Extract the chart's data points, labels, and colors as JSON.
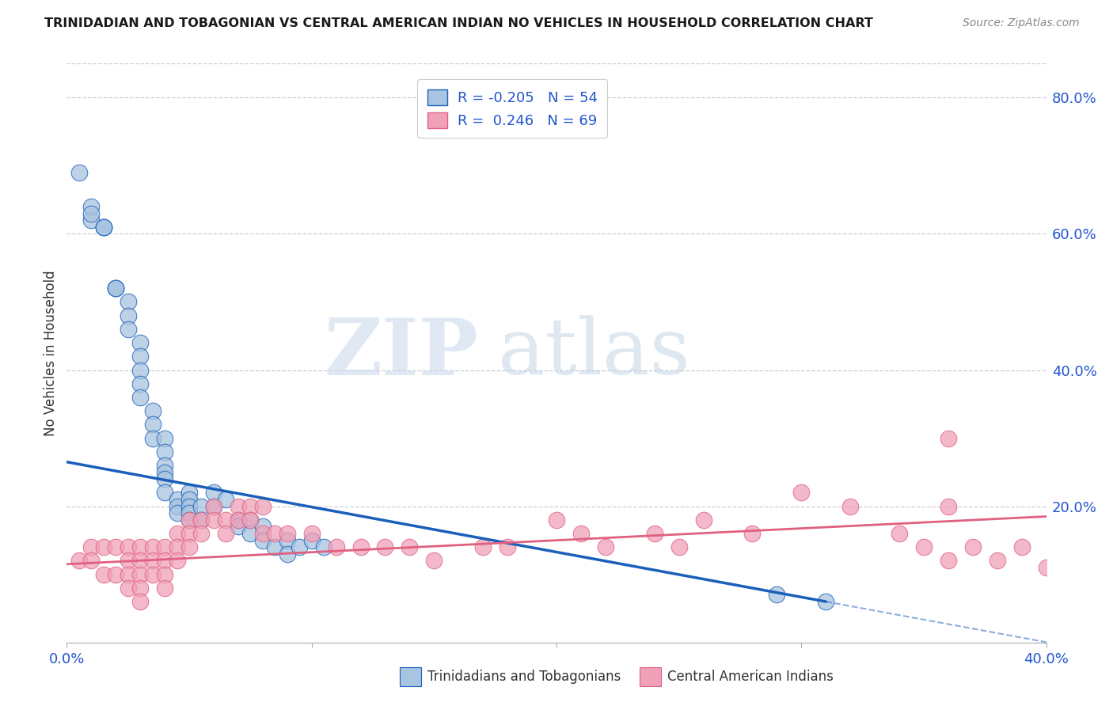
{
  "title": "TRINIDADIAN AND TOBAGONIAN VS CENTRAL AMERICAN INDIAN NO VEHICLES IN HOUSEHOLD CORRELATION CHART",
  "source": "Source: ZipAtlas.com",
  "ylabel": "No Vehicles in Household",
  "legend_label_blue": "Trinidadians and Tobagonians",
  "legend_label_pink": "Central American Indians",
  "legend_r_blue": "R = -0.205",
  "legend_n_blue": "N = 54",
  "legend_r_pink": "R =  0.246",
  "legend_n_pink": "N = 69",
  "blue_color": "#a8c4e0",
  "pink_color": "#f0a0b8",
  "blue_line_color": "#1a5fba",
  "pink_line_color": "#e06080",
  "watermark_zip": "ZIP",
  "watermark_atlas": "atlas",
  "blue_scatter_x": [
    0.005,
    0.01,
    0.01,
    0.015,
    0.01,
    0.015,
    0.015,
    0.02,
    0.02,
    0.02,
    0.025,
    0.025,
    0.025,
    0.03,
    0.03,
    0.03,
    0.03,
    0.03,
    0.035,
    0.035,
    0.035,
    0.04,
    0.04,
    0.04,
    0.04,
    0.04,
    0.04,
    0.045,
    0.045,
    0.045,
    0.05,
    0.05,
    0.05,
    0.05,
    0.05,
    0.055,
    0.055,
    0.06,
    0.06,
    0.065,
    0.07,
    0.07,
    0.075,
    0.075,
    0.08,
    0.08,
    0.085,
    0.09,
    0.09,
    0.095,
    0.1,
    0.105,
    0.29,
    0.31
  ],
  "blue_scatter_y": [
    0.69,
    0.62,
    0.64,
    0.61,
    0.63,
    0.61,
    0.61,
    0.52,
    0.52,
    0.52,
    0.5,
    0.48,
    0.46,
    0.44,
    0.42,
    0.4,
    0.38,
    0.36,
    0.34,
    0.32,
    0.3,
    0.3,
    0.28,
    0.26,
    0.25,
    0.24,
    0.22,
    0.21,
    0.2,
    0.19,
    0.22,
    0.21,
    0.2,
    0.19,
    0.18,
    0.2,
    0.18,
    0.22,
    0.2,
    0.21,
    0.18,
    0.17,
    0.18,
    0.16,
    0.17,
    0.15,
    0.14,
    0.15,
    0.13,
    0.14,
    0.15,
    0.14,
    0.07,
    0.06
  ],
  "pink_scatter_x": [
    0.005,
    0.01,
    0.01,
    0.015,
    0.015,
    0.02,
    0.02,
    0.025,
    0.025,
    0.025,
    0.025,
    0.03,
    0.03,
    0.03,
    0.03,
    0.03,
    0.035,
    0.035,
    0.035,
    0.04,
    0.04,
    0.04,
    0.04,
    0.045,
    0.045,
    0.045,
    0.05,
    0.05,
    0.05,
    0.055,
    0.055,
    0.06,
    0.06,
    0.065,
    0.065,
    0.07,
    0.07,
    0.075,
    0.075,
    0.08,
    0.08,
    0.085,
    0.09,
    0.1,
    0.11,
    0.12,
    0.13,
    0.14,
    0.15,
    0.17,
    0.18,
    0.2,
    0.21,
    0.22,
    0.24,
    0.25,
    0.26,
    0.28,
    0.3,
    0.32,
    0.34,
    0.35,
    0.36,
    0.36,
    0.36,
    0.37,
    0.38,
    0.39,
    0.4
  ],
  "pink_scatter_y": [
    0.12,
    0.14,
    0.12,
    0.14,
    0.1,
    0.14,
    0.1,
    0.14,
    0.12,
    0.1,
    0.08,
    0.14,
    0.12,
    0.1,
    0.08,
    0.06,
    0.14,
    0.12,
    0.1,
    0.14,
    0.12,
    0.1,
    0.08,
    0.16,
    0.14,
    0.12,
    0.18,
    0.16,
    0.14,
    0.18,
    0.16,
    0.2,
    0.18,
    0.18,
    0.16,
    0.2,
    0.18,
    0.2,
    0.18,
    0.2,
    0.16,
    0.16,
    0.16,
    0.16,
    0.14,
    0.14,
    0.14,
    0.14,
    0.12,
    0.14,
    0.14,
    0.18,
    0.16,
    0.14,
    0.16,
    0.14,
    0.18,
    0.16,
    0.22,
    0.2,
    0.16,
    0.14,
    0.12,
    0.2,
    0.3,
    0.14,
    0.12,
    0.14,
    0.11
  ],
  "xlim": [
    0.0,
    0.4
  ],
  "ylim": [
    0.0,
    0.85
  ],
  "xticks": [
    0.0,
    0.1,
    0.2,
    0.3,
    0.4
  ],
  "yticks_right": [
    0.2,
    0.4,
    0.6,
    0.8
  ],
  "ytick_right_labels": [
    "20.0%",
    "40.0%",
    "60.0%",
    "80.0%"
  ],
  "title_fontsize": 11.5,
  "source_fontsize": 10,
  "axis_fontsize": 13,
  "legend_fontsize": 13,
  "grid_color": "#c8cfd8",
  "spine_color": "#aaaaaa"
}
